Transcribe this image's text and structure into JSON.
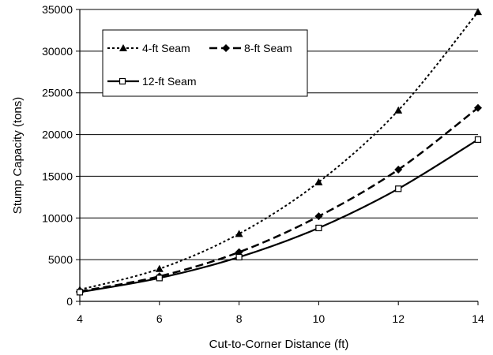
{
  "chart_data": {
    "type": "line",
    "xlabel": "Cut-to-Corner Distance (ft)",
    "ylabel": "Stump Capacity (tons)",
    "xlim": [
      4,
      14
    ],
    "ylim": [
      0,
      35000
    ],
    "x_ticks": [
      4,
      6,
      8,
      10,
      12,
      14
    ],
    "y_ticks": [
      0,
      5000,
      10000,
      15000,
      20000,
      25000,
      30000,
      35000
    ],
    "grid": "horizontal",
    "legend_position": "top-left",
    "series": [
      {
        "name": "4-ft Seam",
        "marker": "triangle",
        "line_style": "dotted",
        "x": [
          4,
          6,
          8,
          10,
          12,
          14
        ],
        "y": [
          1400,
          3900,
          8100,
          14300,
          22900,
          34700
        ]
      },
      {
        "name": "8-ft Seam",
        "marker": "diamond",
        "line_style": "dashed",
        "x": [
          4,
          6,
          8,
          10,
          12,
          14
        ],
        "y": [
          1200,
          3000,
          5900,
          10200,
          15800,
          23200
        ]
      },
      {
        "name": "12-ft Seam",
        "marker": "square",
        "line_style": "solid",
        "x": [
          4,
          6,
          8,
          10,
          12,
          14
        ],
        "y": [
          1100,
          2800,
          5300,
          8800,
          13500,
          19400
        ]
      }
    ]
  }
}
